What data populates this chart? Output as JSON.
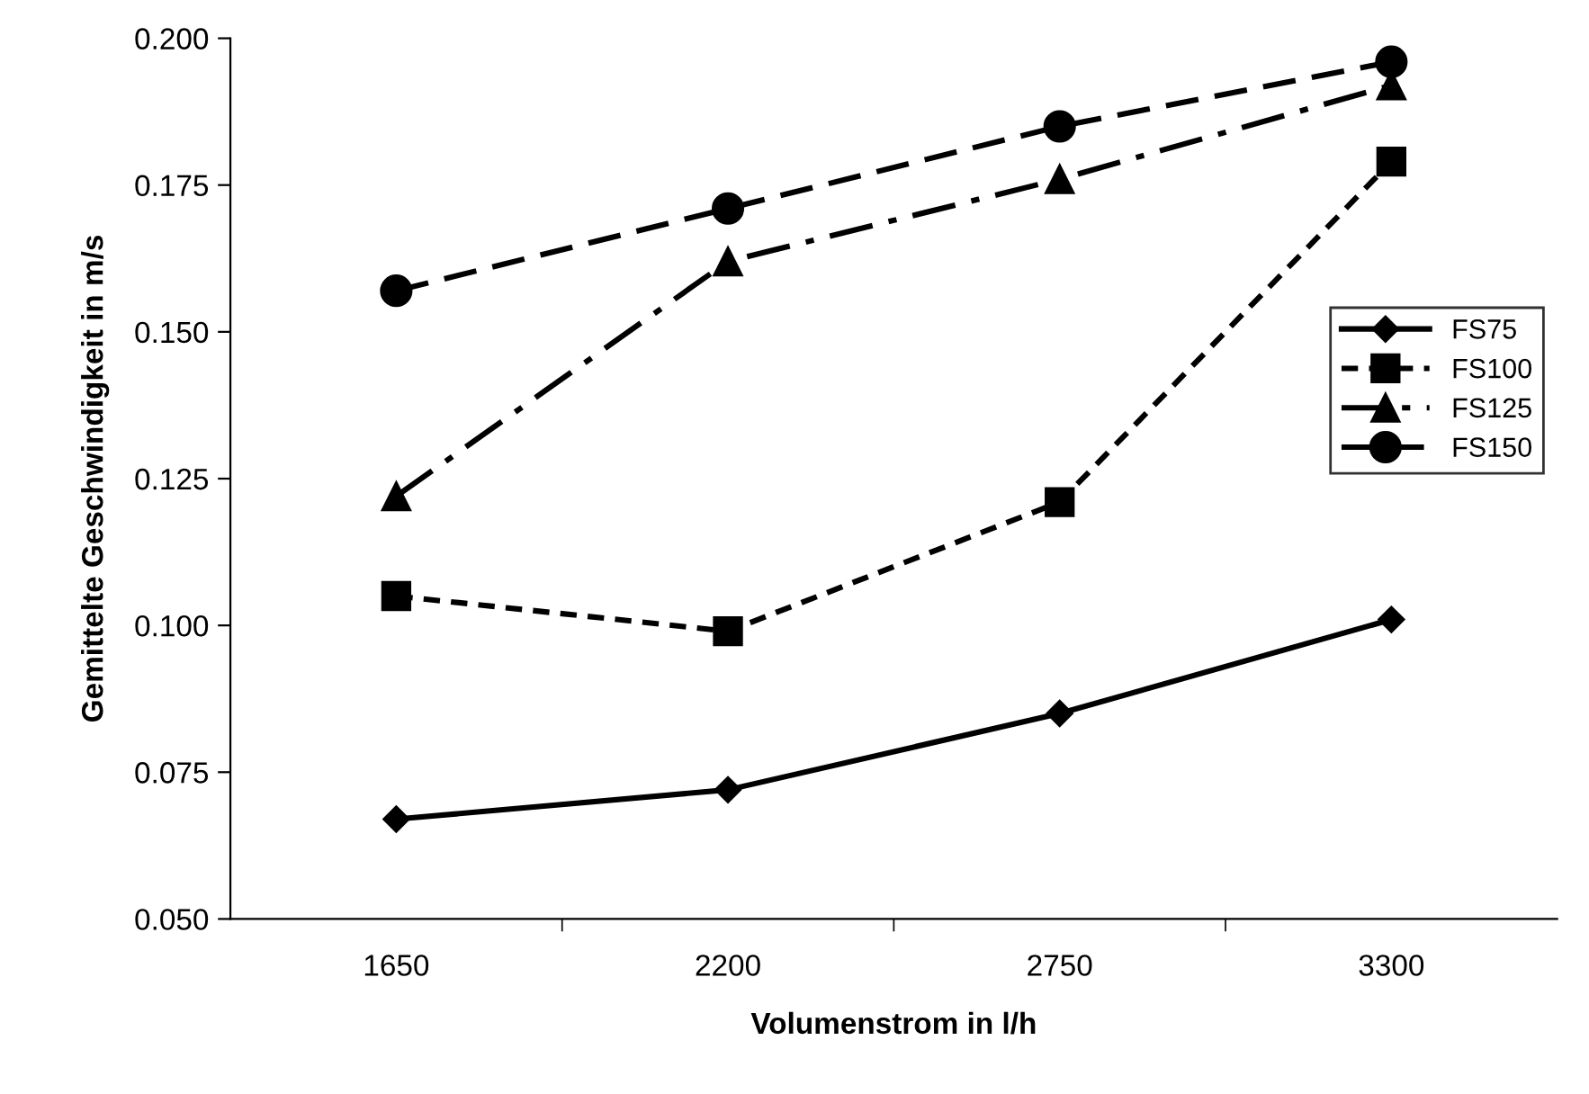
{
  "chart_data": {
    "type": "line",
    "xlabel": "Volumenstrom in l/h",
    "ylabel": "Gemittelte Geschwindigkeit in m/s",
    "categories": [
      "1650",
      "2200",
      "2750",
      "3300"
    ],
    "ylim": [
      0.05,
      0.2
    ],
    "yticks": [
      {
        "value": 0.05,
        "label": "0.050"
      },
      {
        "value": 0.075,
        "label": "0.075"
      },
      {
        "value": 0.1,
        "label": "0.100"
      },
      {
        "value": 0.125,
        "label": "0.125"
      },
      {
        "value": 0.15,
        "label": "0.150"
      },
      {
        "value": 0.175,
        "label": "0.175"
      },
      {
        "value": 0.2,
        "label": "0.200"
      }
    ],
    "grid": false,
    "legend": "right",
    "series": [
      {
        "name": "FS75",
        "color": "#000000",
        "marker": "diamond",
        "line_style": "solid",
        "values": [
          0.067,
          0.072,
          0.085,
          0.101
        ]
      },
      {
        "name": "FS100",
        "color": "#000000",
        "marker": "square",
        "line_style": "dashed",
        "values": [
          0.105,
          0.099,
          0.121,
          0.179
        ]
      },
      {
        "name": "FS125",
        "color": "#000000",
        "marker": "triangle",
        "line_style": "dashdot",
        "values": [
          0.122,
          0.162,
          0.176,
          0.192
        ]
      },
      {
        "name": "FS150",
        "color": "#000000",
        "marker": "circle",
        "line_style": "longdash",
        "values": [
          0.157,
          0.171,
          0.185,
          0.196
        ]
      }
    ]
  }
}
